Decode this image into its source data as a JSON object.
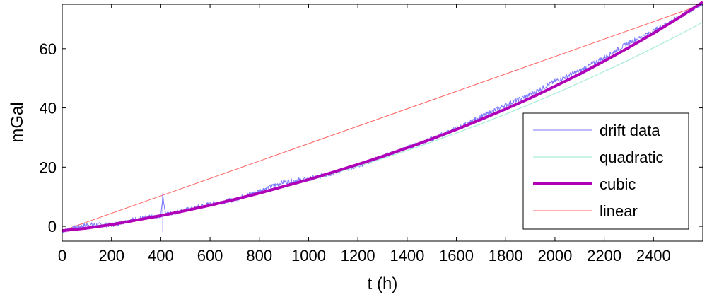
{
  "chart_data": {
    "type": "line",
    "title": "",
    "xlabel": "t (h)",
    "ylabel": "mGal",
    "xlim": [
      0,
      2600
    ],
    "ylim": [
      -5,
      75
    ],
    "x_ticks": [
      0,
      200,
      400,
      600,
      800,
      1000,
      1200,
      1400,
      1600,
      1800,
      2000,
      2200,
      2400
    ],
    "x_tick_labels": [
      "0",
      "200",
      "400",
      "600",
      "800",
      "1000",
      "1200",
      "1400",
      "1600",
      "1800",
      "2000",
      "2200",
      "2400"
    ],
    "y_ticks": [
      0,
      20,
      40,
      60
    ],
    "y_tick_labels": [
      "0",
      "20",
      "40",
      "60"
    ],
    "grid": false,
    "legend": {
      "position": "center-right"
    },
    "series": [
      {
        "name": "drift data",
        "color": "#7a7aff",
        "style": "thin noisy line",
        "x": [
          0,
          100,
          200,
          300,
          400,
          408,
          420,
          500,
          600,
          700,
          800,
          900,
          1000,
          1100,
          1200,
          1300,
          1400,
          1500,
          1600,
          1700,
          1800,
          1900,
          2000,
          2100,
          2200,
          2300,
          2400,
          2500,
          2600
        ],
        "y": [
          -1.5,
          0.5,
          0.5,
          2.5,
          3.5,
          10.5,
          4,
          5.5,
          7.5,
          9,
          12,
          15,
          16,
          18,
          20.5,
          23.5,
          26.5,
          29.5,
          33,
          37,
          41,
          44.5,
          49,
          52.5,
          57,
          62,
          66,
          70.5,
          75
        ]
      },
      {
        "name": "quadratic",
        "color": "#a6ecd8",
        "x": [
          0,
          100,
          200,
          300,
          400,
          500,
          600,
          700,
          800,
          900,
          1000,
          1100,
          1200,
          1300,
          1400,
          1500,
          1600,
          1700,
          1800,
          1900,
          2000,
          2100,
          2200,
          2300,
          2400,
          2500,
          2600
        ],
        "y": [
          -1.5,
          -0.3,
          1.0,
          2.4,
          3.9,
          5.5,
          7.2,
          9.1,
          11.1,
          13.2,
          15.4,
          17.8,
          20.3,
          22.9,
          25.6,
          28.5,
          31.5,
          34.6,
          37.9,
          41.3,
          44.8,
          48.5,
          52.3,
          56.2,
          60.3,
          64.5,
          68.9
        ]
      },
      {
        "name": "cubic",
        "color": "#b000b8",
        "x": [
          0,
          100,
          200,
          300,
          400,
          500,
          600,
          700,
          800,
          900,
          1000,
          1100,
          1200,
          1300,
          1400,
          1500,
          1600,
          1700,
          1800,
          1900,
          2000,
          2100,
          2200,
          2300,
          2400,
          2500,
          2600
        ],
        "y": [
          -1.5,
          -0.6,
          0.6,
          2.1,
          3.6,
          5.3,
          7.1,
          9.1,
          11.2,
          13.5,
          15.8,
          18.3,
          20.9,
          23.6,
          26.5,
          29.5,
          32.7,
          36.1,
          39.6,
          43.3,
          47.3,
          51.4,
          55.8,
          60.4,
          65.2,
          70.3,
          75.7
        ]
      },
      {
        "name": "linear",
        "color": "#ff6060",
        "x": [
          0,
          2600
        ],
        "y": [
          -1.5,
          75
        ]
      }
    ]
  }
}
